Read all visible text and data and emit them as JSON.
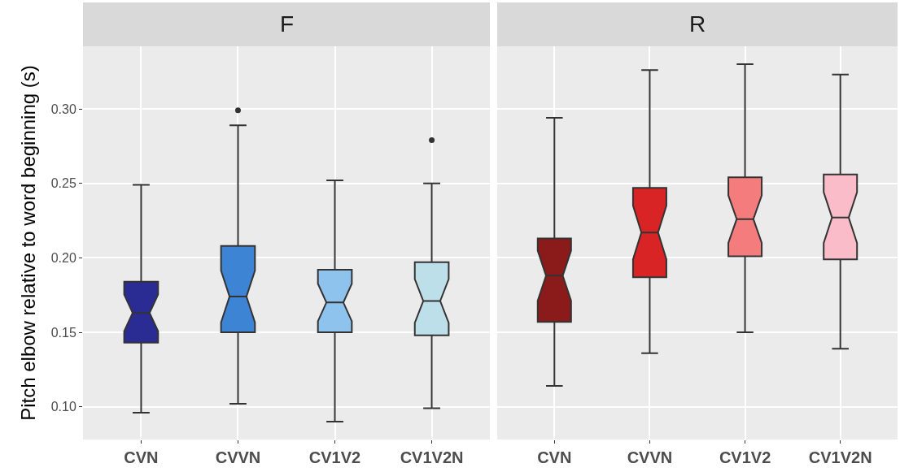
{
  "chart_data": [
    {
      "type": "box",
      "title": "F",
      "ylabel": "Pitch elbow relative to word beginning (s)",
      "categories": [
        "CVN",
        "CVVN",
        "CV1V2",
        "CV1V2N"
      ],
      "colors": [
        "#2b2b94",
        "#3d85d4",
        "#8ec3ee",
        "#bcdfe9"
      ],
      "boxes": [
        {
          "low": 0.096,
          "q1": 0.143,
          "median": 0.163,
          "q3": 0.184,
          "high": 0.249
        },
        {
          "low": 0.102,
          "q1": 0.15,
          "median": 0.174,
          "q3": 0.208,
          "high": 0.289,
          "outliers": [
            0.299
          ]
        },
        {
          "low": 0.09,
          "q1": 0.15,
          "median": 0.17,
          "q3": 0.192,
          "high": 0.252
        },
        {
          "low": 0.099,
          "q1": 0.148,
          "median": 0.171,
          "q3": 0.197,
          "high": 0.25,
          "outliers": [
            0.279
          ]
        }
      ],
      "ylim": [
        0.078,
        0.342
      ],
      "yticks": [
        {
          "value": 0.1,
          "label": "0.10"
        },
        0.15,
        {
          "value": 0.2,
          "label": "0.20"
        },
        0.25,
        {
          "value": 0.3,
          "label": "0.30"
        }
      ],
      "grid": true
    },
    {
      "type": "box",
      "title": "R",
      "categories": [
        "CVN",
        "CVVN",
        "CV1V2",
        "CV1V2N"
      ],
      "colors": [
        "#8b1a1a",
        "#d82424",
        "#f47c7c",
        "#f9bcc8"
      ],
      "boxes": [
        {
          "low": 0.114,
          "q1": 0.157,
          "median": 0.188,
          "q3": 0.213,
          "high": 0.294
        },
        {
          "low": 0.136,
          "q1": 0.187,
          "median": 0.217,
          "q3": 0.247,
          "high": 0.326
        },
        {
          "low": 0.15,
          "q1": 0.201,
          "median": 0.226,
          "q3": 0.254,
          "high": 0.33
        },
        {
          "low": 0.139,
          "q1": 0.199,
          "median": 0.227,
          "q3": 0.256,
          "high": 0.323
        }
      ],
      "ylim": [
        0.078,
        0.342
      ],
      "yticks": [
        0.1,
        0.15,
        0.2,
        0.25,
        0.3
      ],
      "grid": true,
      "tick_labels": "x"
    }
  ]
}
